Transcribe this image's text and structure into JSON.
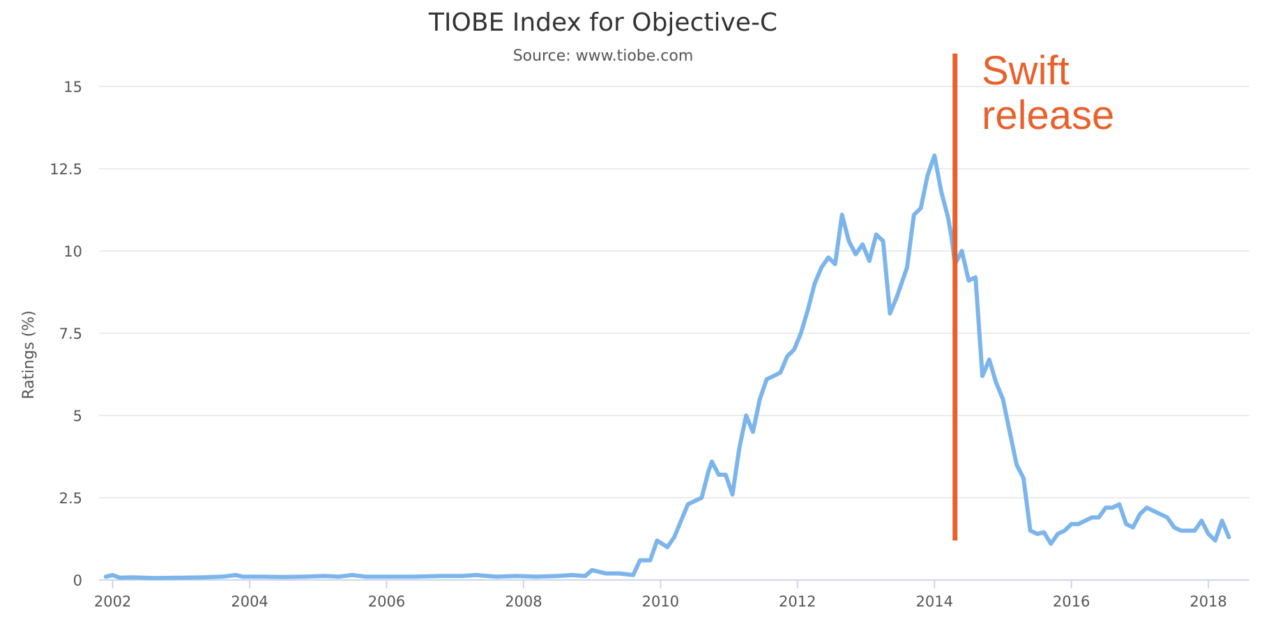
{
  "chart_data": {
    "type": "line",
    "title": "TIOBE Index for Objective-C",
    "subtitle": "Source: www.tiobe.com",
    "xlabel": "",
    "ylabel": "Ratings (%)",
    "xlim": [
      2001.8,
      2018.6
    ],
    "ylim": [
      0,
      16
    ],
    "x_ticks": [
      2002,
      2004,
      2006,
      2008,
      2010,
      2012,
      2014,
      2016,
      2018
    ],
    "y_ticks": [
      0,
      2.5,
      5,
      7.5,
      10,
      12.5,
      15
    ],
    "y_tick_labels": [
      "0",
      "2.5",
      "5",
      "7.5",
      "10",
      "12.5",
      "15"
    ],
    "grid": true,
    "colors": {
      "series": "#7cb5ec",
      "annotation": "#e8612c",
      "grid": "#e6e6e6",
      "axis": "#ccd6eb",
      "tick_text": "#555555"
    },
    "series": [
      {
        "name": "",
        "x": [
          2001.9,
          2002.0,
          2002.1,
          2002.3,
          2002.6,
          2003.0,
          2003.3,
          2003.6,
          2003.8,
          2003.9,
          2004.2,
          2004.5,
          2004.8,
          2005.1,
          2005.3,
          2005.5,
          2005.7,
          2006.0,
          2006.4,
          2006.8,
          2007.1,
          2007.3,
          2007.6,
          2007.9,
          2008.2,
          2008.5,
          2008.7,
          2008.9,
          2009.0,
          2009.2,
          2009.4,
          2009.6,
          2009.7,
          2009.85,
          2009.95,
          2010.1,
          2010.2,
          2010.3,
          2010.4,
          2010.5,
          2010.6,
          2010.7,
          2010.75,
          2010.85,
          2010.95,
          2011.05,
          2011.15,
          2011.25,
          2011.35,
          2011.45,
          2011.55,
          2011.65,
          2011.75,
          2011.85,
          2011.95,
          2012.05,
          2012.15,
          2012.25,
          2012.35,
          2012.45,
          2012.55,
          2012.65,
          2012.75,
          2012.85,
          2012.95,
          2013.05,
          2013.15,
          2013.25,
          2013.35,
          2013.45,
          2013.55,
          2013.6,
          2013.7,
          2013.8,
          2013.9,
          2014.0,
          2014.1,
          2014.2,
          2014.25,
          2014.3,
          2014.4,
          2014.5,
          2014.6,
          2014.7,
          2014.8,
          2014.9,
          2015.0,
          2015.1,
          2015.2,
          2015.3,
          2015.4,
          2015.5,
          2015.6,
          2015.7,
          2015.8,
          2015.9,
          2016.0,
          2016.1,
          2016.2,
          2016.3,
          2016.4,
          2016.5,
          2016.6,
          2016.7,
          2016.8,
          2016.9,
          2017.0,
          2017.1,
          2017.2,
          2017.3,
          2017.4,
          2017.5,
          2017.6,
          2017.7,
          2017.8,
          2017.9,
          2018.0,
          2018.1,
          2018.2,
          2018.3
        ],
        "y": [
          0.1,
          0.15,
          0.07,
          0.08,
          0.06,
          0.07,
          0.08,
          0.1,
          0.15,
          0.1,
          0.1,
          0.09,
          0.1,
          0.12,
          0.1,
          0.15,
          0.1,
          0.1,
          0.1,
          0.12,
          0.12,
          0.15,
          0.1,
          0.12,
          0.1,
          0.12,
          0.15,
          0.12,
          0.3,
          0.2,
          0.2,
          0.15,
          0.6,
          0.6,
          1.2,
          1.0,
          1.3,
          1.8,
          2.3,
          2.4,
          2.5,
          3.3,
          3.6,
          3.2,
          3.2,
          2.6,
          4.0,
          5.0,
          4.5,
          5.5,
          6.1,
          6.2,
          6.3,
          6.8,
          7.0,
          7.5,
          8.2,
          9.0,
          9.5,
          9.8,
          9.6,
          11.1,
          10.3,
          9.9,
          10.2,
          9.7,
          10.5,
          10.3,
          8.1,
          8.6,
          9.2,
          9.5,
          11.1,
          11.3,
          12.3,
          12.9,
          11.8,
          11.0,
          10.4,
          9.6,
          10.0,
          9.1,
          9.2,
          6.2,
          6.7,
          6.0,
          5.5,
          4.5,
          3.5,
          3.1,
          1.5,
          1.4,
          1.45,
          1.1,
          1.4,
          1.5,
          1.7,
          1.7,
          1.8,
          1.9,
          1.9,
          2.2,
          2.2,
          2.3,
          1.7,
          1.6,
          2.0,
          2.2,
          2.1,
          2.0,
          1.9,
          1.6,
          1.5,
          1.5,
          1.5,
          1.8,
          1.4,
          1.2,
          1.8,
          1.3
        ]
      }
    ],
    "annotations": [
      {
        "type": "vertical-line",
        "x": 2014.3,
        "y_range": [
          1.2,
          16
        ],
        "label_lines": [
          "Swift",
          "release"
        ]
      }
    ],
    "legend": "none"
  }
}
